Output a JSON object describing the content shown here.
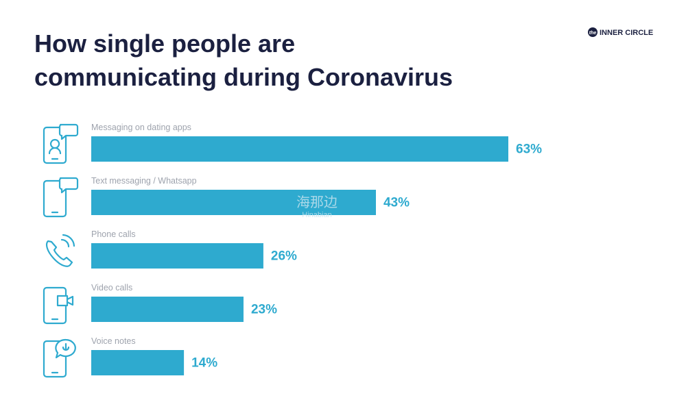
{
  "chart_data": {
    "type": "bar",
    "orientation": "horizontal",
    "title": [
      "How single people are",
      "communicating during Coronavirus"
    ],
    "brand_mark": "the",
    "brand": "INNER CIRCLE",
    "watermark": [
      "海那边",
      "Hinabian"
    ],
    "categories": [
      "Messaging on dating apps",
      "Text messaging / Whatsapp",
      "Phone calls",
      "Video calls",
      "Voice notes"
    ],
    "values": [
      63,
      43,
      26,
      23,
      14
    ],
    "value_labels": [
      "63%",
      "43%",
      "26%",
      "23%",
      "14%"
    ],
    "color": "#2eaacf",
    "grid": false
  }
}
